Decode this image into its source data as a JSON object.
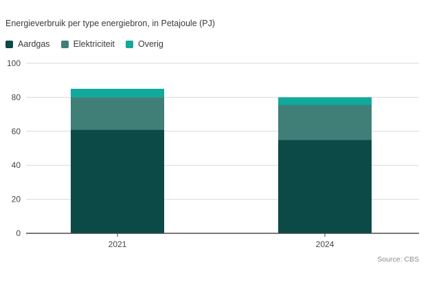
{
  "chart_data": {
    "type": "bar",
    "stacked": true,
    "title": "Energieverbruik per type energiebron, in Petajoule (PJ)",
    "categories": [
      "2021",
      "2024"
    ],
    "series": [
      {
        "name": "Aardgas",
        "color": "#0b4a47",
        "values": [
          61,
          55
        ]
      },
      {
        "name": "Elektriciteit",
        "color": "#3f7f78",
        "values": [
          19,
          20.5
        ]
      },
      {
        "name": "Overig",
        "color": "#10a99c",
        "values": [
          5,
          4.5
        ]
      }
    ],
    "y_ticks": [
      "0",
      "20",
      "40",
      "60",
      "80",
      "100"
    ],
    "ylim": [
      0,
      100
    ],
    "xlabel": "",
    "ylabel": "",
    "legend_position": "top-left",
    "grid": true
  },
  "source": "Source: CBS"
}
